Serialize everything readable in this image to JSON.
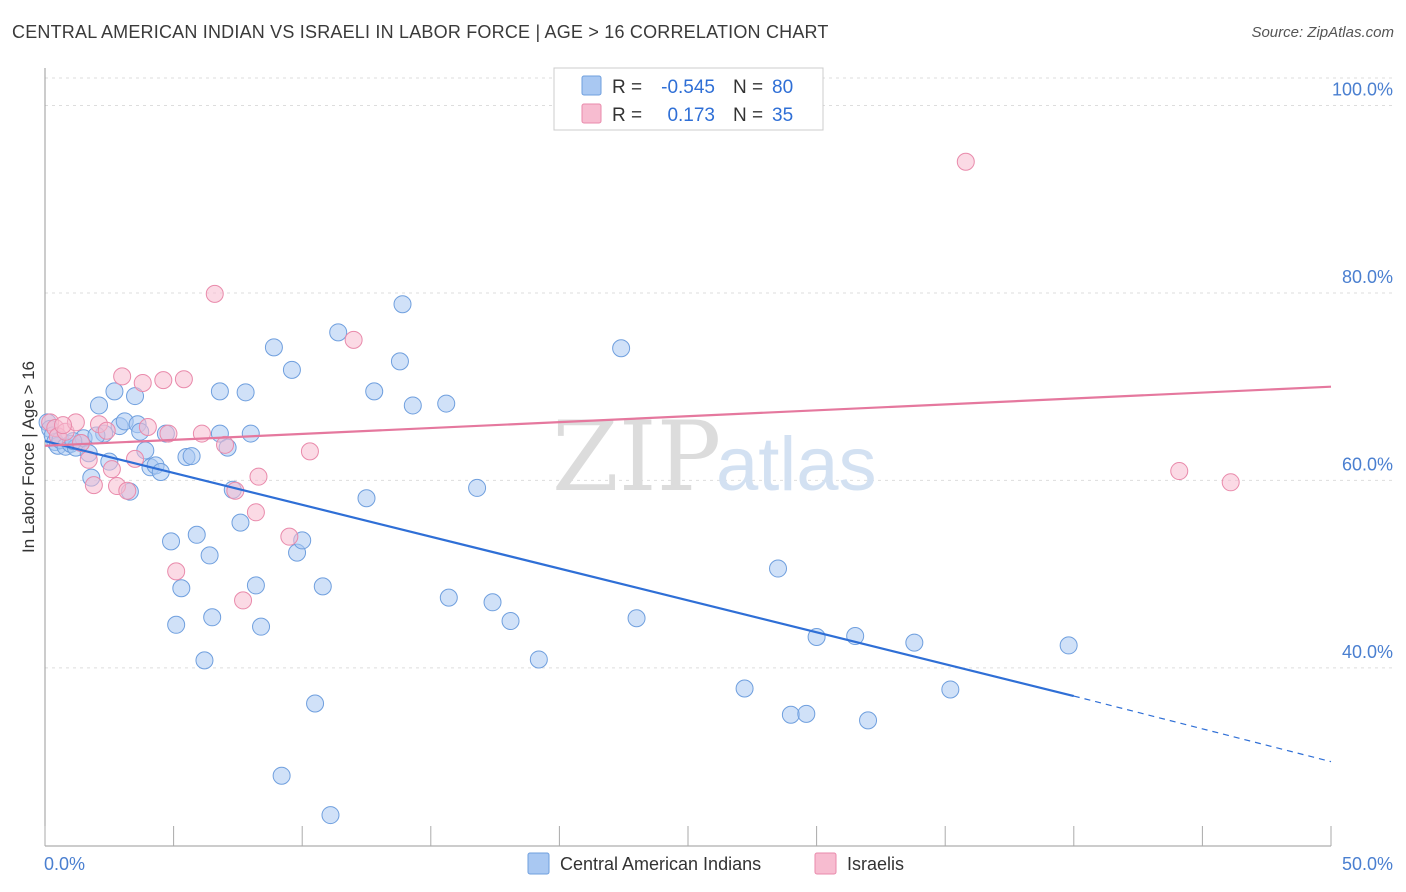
{
  "title": "CENTRAL AMERICAN INDIAN VS ISRAELI IN LABOR FORCE | AGE > 16 CORRELATION CHART",
  "source": "Source: ZipAtlas.com",
  "watermark": {
    "zip": "ZIP",
    "atlas": "atlas"
  },
  "chart_data": {
    "type": "scatter",
    "title": "CENTRAL AMERICAN INDIAN VS ISRAELI IN LABOR FORCE | AGE > 16 CORRELATION CHART",
    "xlabel": "",
    "ylabel": "In Labor Force | Age > 16",
    "xlim": [
      0,
      50
    ],
    "ylim": [
      21,
      104
    ],
    "x_tick_labels": [
      "0.0%",
      "50.0%"
    ],
    "y_ticks": [
      40,
      60,
      80,
      100
    ],
    "y_tick_labels": [
      "40.0%",
      "60.0%",
      "80.0%",
      "100.0%"
    ],
    "grid": true,
    "legend_top": [
      {
        "r_label": "R =",
        "r_value": "-0.545",
        "n_label": "N =",
        "n_value": "80",
        "color": "#a9c8f2"
      },
      {
        "r_label": "R =",
        "r_value": "0.173",
        "n_label": "N =",
        "n_value": "35",
        "color": "#f7bcd0"
      }
    ],
    "series": [
      {
        "name": "Central American Indians",
        "color": "#a9c8f2",
        "stroke": "#6f9fde",
        "trend_color": "#2f6fd6",
        "trend": {
          "x0": 0,
          "y0": 64.2,
          "x1": 40,
          "y1": 37.0,
          "dash_x1": 50,
          "dash_y1": 30.0
        },
        "points": [
          [
            0.1,
            66.2
          ],
          [
            0.2,
            65.5
          ],
          [
            0.3,
            64.8
          ],
          [
            0.4,
            64.1
          ],
          [
            0.5,
            63.7
          ],
          [
            0.6,
            64.3
          ],
          [
            0.8,
            63.6
          ],
          [
            1.0,
            63.9
          ],
          [
            1.2,
            63.5
          ],
          [
            1.4,
            64.0
          ],
          [
            1.5,
            64.5
          ],
          [
            1.7,
            62.9
          ],
          [
            1.8,
            60.3
          ],
          [
            2.1,
            68.0
          ],
          [
            2.3,
            65.0
          ],
          [
            2.7,
            69.5
          ],
          [
            2.5,
            62.0
          ],
          [
            2.9,
            65.8
          ],
          [
            3.1,
            66.3
          ],
          [
            3.3,
            58.8
          ],
          [
            3.5,
            69.0
          ],
          [
            3.6,
            66.0
          ],
          [
            3.9,
            63.2
          ],
          [
            4.1,
            61.4
          ],
          [
            4.3,
            61.6
          ],
          [
            4.5,
            60.9
          ],
          [
            4.7,
            65.0
          ],
          [
            4.9,
            53.5
          ],
          [
            5.1,
            44.6
          ],
          [
            5.3,
            48.5
          ],
          [
            5.5,
            62.5
          ],
          [
            5.7,
            62.6
          ],
          [
            5.9,
            54.2
          ],
          [
            6.2,
            40.8
          ],
          [
            6.4,
            52.0
          ],
          [
            6.5,
            45.4
          ],
          [
            6.8,
            65.0
          ],
          [
            7.1,
            63.5
          ],
          [
            7.3,
            59.0
          ],
          [
            7.6,
            55.5
          ],
          [
            7.8,
            69.4
          ],
          [
            8.0,
            65.0
          ],
          [
            8.2,
            48.8
          ],
          [
            8.4,
            44.4
          ],
          [
            8.9,
            74.2
          ],
          [
            9.2,
            28.5
          ],
          [
            9.6,
            71.8
          ],
          [
            9.8,
            52.3
          ],
          [
            10.0,
            53.6
          ],
          [
            10.5,
            36.2
          ],
          [
            10.8,
            48.7
          ],
          [
            11.1,
            24.3
          ],
          [
            11.4,
            75.8
          ],
          [
            12.5,
            58.1
          ],
          [
            12.8,
            69.5
          ],
          [
            13.8,
            72.7
          ],
          [
            13.9,
            78.8
          ],
          [
            14.3,
            68.0
          ],
          [
            15.6,
            68.2
          ],
          [
            15.7,
            47.5
          ],
          [
            16.8,
            59.2
          ],
          [
            17.4,
            47.0
          ],
          [
            18.1,
            45.0
          ],
          [
            19.2,
            40.9
          ],
          [
            22.4,
            74.1
          ],
          [
            23.0,
            45.3
          ],
          [
            27.2,
            37.8
          ],
          [
            28.5,
            50.6
          ],
          [
            29.0,
            35.0
          ],
          [
            29.6,
            35.1
          ],
          [
            30.0,
            43.3
          ],
          [
            31.5,
            43.4
          ],
          [
            32.0,
            34.4
          ],
          [
            33.8,
            42.7
          ],
          [
            35.2,
            37.7
          ],
          [
            39.8,
            42.4
          ],
          [
            6.8,
            69.5
          ],
          [
            3.7,
            65.2
          ],
          [
            1.1,
            64.2
          ],
          [
            2.0,
            64.8
          ]
        ]
      },
      {
        "name": "Israelis",
        "color": "#f7bcd0",
        "stroke": "#e98aab",
        "trend_color": "#e5789e",
        "trend": {
          "x0": 0,
          "y0": 63.7,
          "x1": 50,
          "y1": 70.0
        },
        "points": [
          [
            0.2,
            66.2
          ],
          [
            0.4,
            65.6
          ],
          [
            0.5,
            64.7
          ],
          [
            0.8,
            65.2
          ],
          [
            1.2,
            66.2
          ],
          [
            1.4,
            64.0
          ],
          [
            1.7,
            62.2
          ],
          [
            1.9,
            59.5
          ],
          [
            2.1,
            66.0
          ],
          [
            2.4,
            65.3
          ],
          [
            2.6,
            61.2
          ],
          [
            2.8,
            59.4
          ],
          [
            3.0,
            71.1
          ],
          [
            3.2,
            58.9
          ],
          [
            3.5,
            62.3
          ],
          [
            3.8,
            70.4
          ],
          [
            4.0,
            65.7
          ],
          [
            4.6,
            70.7
          ],
          [
            4.8,
            65.0
          ],
          [
            5.1,
            50.3
          ],
          [
            5.4,
            70.8
          ],
          [
            6.1,
            65.0
          ],
          [
            6.6,
            79.9
          ],
          [
            7.0,
            63.8
          ],
          [
            7.4,
            58.9
          ],
          [
            7.7,
            47.2
          ],
          [
            8.2,
            56.6
          ],
          [
            8.3,
            60.4
          ],
          [
            9.5,
            54.0
          ],
          [
            10.3,
            63.1
          ],
          [
            12.0,
            75.0
          ],
          [
            35.8,
            94.0
          ],
          [
            44.1,
            61.0
          ],
          [
            46.1,
            59.8
          ],
          [
            0.7,
            65.9
          ]
        ]
      }
    ]
  }
}
